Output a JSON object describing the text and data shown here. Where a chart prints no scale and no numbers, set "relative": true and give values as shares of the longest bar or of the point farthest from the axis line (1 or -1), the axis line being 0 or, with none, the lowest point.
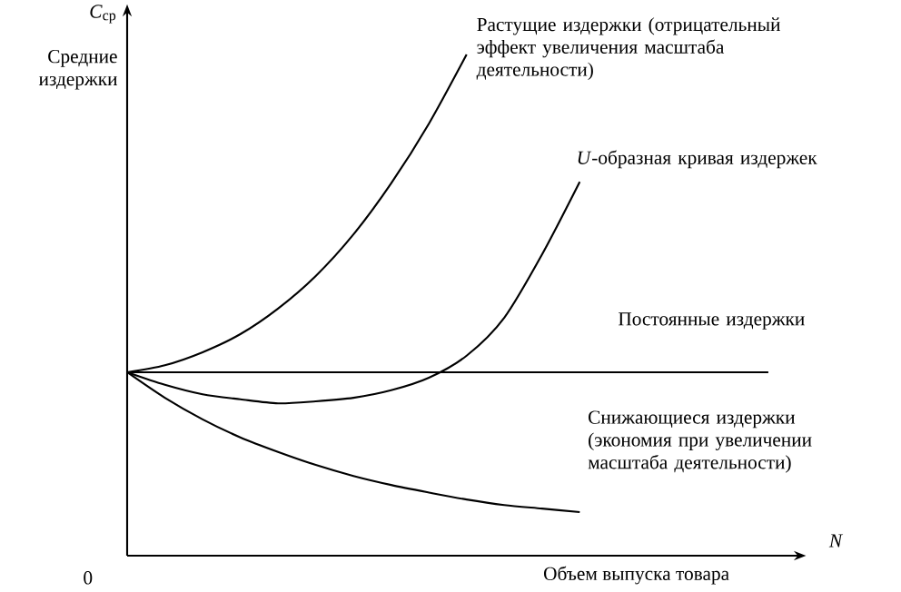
{
  "chart_data": {
    "type": "line",
    "relative": true,
    "ylabel": "Средние издержки",
    "xlabel": "Объем выпуска товара",
    "annotations": [
      "*C*$_{ср}$",
      "*N*",
      "0"
    ],
    "categories": [
      null,
      null,
      null,
      null,
      null,
      null,
      null,
      null,
      null,
      null,
      null,
      null,
      null,
      null,
      null,
      null,
      null,
      null
    ],
    "series": [
      {
        "name": "Растущие издержки (отрицательный эффект увеличения масштаба деятельности)",
        "color": "#000000",
        "values": [
          0.366,
          0.38,
          0.406,
          0.442,
          0.493,
          0.558,
          0.641,
          0.743,
          0.862,
          1.0,
          null,
          null,
          null,
          null,
          null,
          null,
          null,
          null
        ]
      },
      {
        "name": "*U*-образная кривая издержек",
        "color": "#000000",
        "values": [
          0.366,
          0.341,
          0.322,
          0.312,
          0.304,
          0.308,
          0.315,
          0.33,
          0.355,
          0.399,
          0.475,
          0.601,
          0.746,
          null,
          null,
          null,
          null,
          null
        ]
      },
      {
        "name": "Постоянные издержки",
        "color": "#000000",
        "values": [
          0.366,
          0.366,
          0.366,
          0.366,
          0.366,
          0.366,
          0.366,
          0.366,
          0.366,
          0.366,
          0.366,
          0.366,
          0.366,
          0.366,
          0.366,
          0.366,
          0.366,
          0.366
        ]
      },
      {
        "name": "Снижающиеся издержки (экономия при увеличении масштаба деятельности)",
        "color": "#000000",
        "values": [
          0.366,
          0.315,
          0.272,
          0.236,
          0.207,
          0.181,
          0.159,
          0.141,
          0.126,
          0.112,
          0.101,
          0.094,
          0.087,
          null,
          null,
          null,
          null,
          null
        ]
      }
    ]
  }
}
